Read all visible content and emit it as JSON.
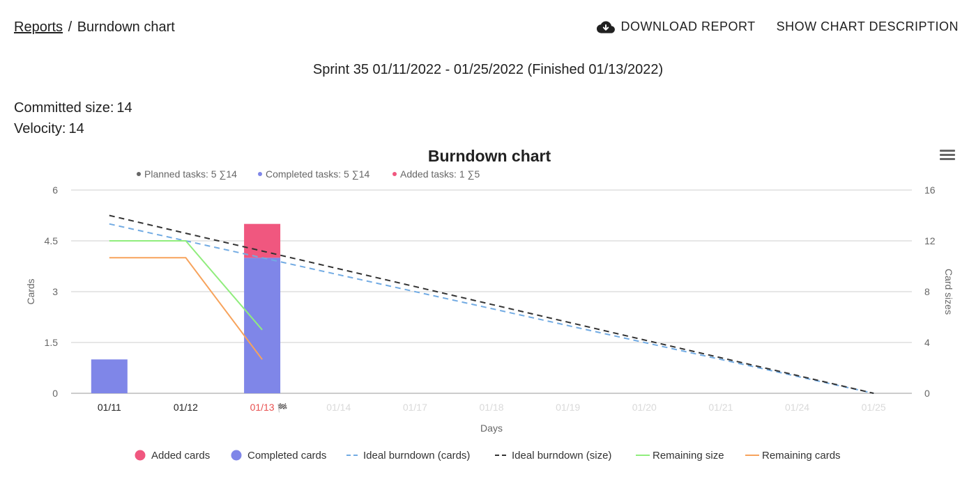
{
  "header": {
    "breadcrumb_link": "Reports",
    "breadcrumb_sep": "/",
    "breadcrumb_current": "Burndown chart",
    "download_label": "DOWNLOAD REPORT",
    "download_icon": "cloud-download-icon",
    "description_label": "SHOW CHART DESCRIPTION"
  },
  "sprint_title": "Sprint 35 01/11/2022 - 01/25/2022 (Finished 01/13/2022)",
  "stats": {
    "committed_label": "Committed size:",
    "committed_value": "14",
    "velocity_label": "Velocity:",
    "velocity_value": "14"
  },
  "chart_data": {
    "type": "bar",
    "title": "Burndown chart",
    "subtitle_items": [
      {
        "label": "Planned tasks: 5 ∑14",
        "color": "#666666"
      },
      {
        "label": "Completed tasks: 5 ∑14",
        "color": "#7f86e8"
      },
      {
        "label": "Added tasks: 1 ∑5",
        "color": "#f0577f"
      }
    ],
    "xlabel": "Days",
    "ylabel": "Cards",
    "ylabel_right": "Card sizes",
    "categories": [
      "01/11",
      "01/12",
      "01/13",
      "01/14",
      "01/17",
      "01/18",
      "01/19",
      "01/20",
      "01/21",
      "01/24",
      "01/25"
    ],
    "active_categories": 2,
    "finish_index": 2,
    "finish_marker": "🏁",
    "ylim": [
      0,
      6
    ],
    "yticks": [
      "0",
      "1.5",
      "3",
      "4.5",
      "6"
    ],
    "ylim_right": [
      0,
      16
    ],
    "yticks_right": [
      "0",
      "4",
      "8",
      "12",
      "16"
    ],
    "grid": true,
    "legend_position": "bottom",
    "colors": {
      "added": "#f0577f",
      "completed": "#7f86e8",
      "ideal_cards": "#72abe3",
      "ideal_size": "#333333",
      "remaining_size": "#90ed7d",
      "remaining_cards": "#f7a35c",
      "finish": "#e8504f"
    },
    "series": [
      {
        "name": "Added cards",
        "type": "bar",
        "axis": "left",
        "values": [
          0,
          0,
          1,
          null,
          null,
          null,
          null,
          null,
          null,
          null,
          null
        ]
      },
      {
        "name": "Completed cards",
        "type": "bar",
        "axis": "left",
        "values": [
          1,
          0,
          4,
          null,
          null,
          null,
          null,
          null,
          null,
          null,
          null
        ]
      },
      {
        "name": "Ideal burndown (cards)",
        "type": "dashed-line",
        "axis": "left",
        "values": [
          5,
          4.5,
          4,
          3.5,
          3,
          2.5,
          2,
          1.5,
          1,
          0.5,
          0
        ]
      },
      {
        "name": "Ideal burndown (size)",
        "type": "dashed-line",
        "axis": "right",
        "values": [
          14,
          12.6,
          11.2,
          9.8,
          8.4,
          7,
          5.6,
          4.2,
          2.8,
          1.4,
          0
        ]
      },
      {
        "name": "Remaining size",
        "type": "line",
        "axis": "right",
        "values": [
          12,
          12,
          5,
          null,
          null,
          null,
          null,
          null,
          null,
          null,
          null
        ]
      },
      {
        "name": "Remaining cards",
        "type": "line",
        "axis": "left",
        "values": [
          4,
          4,
          1,
          null,
          null,
          null,
          null,
          null,
          null,
          null,
          null
        ]
      }
    ]
  }
}
